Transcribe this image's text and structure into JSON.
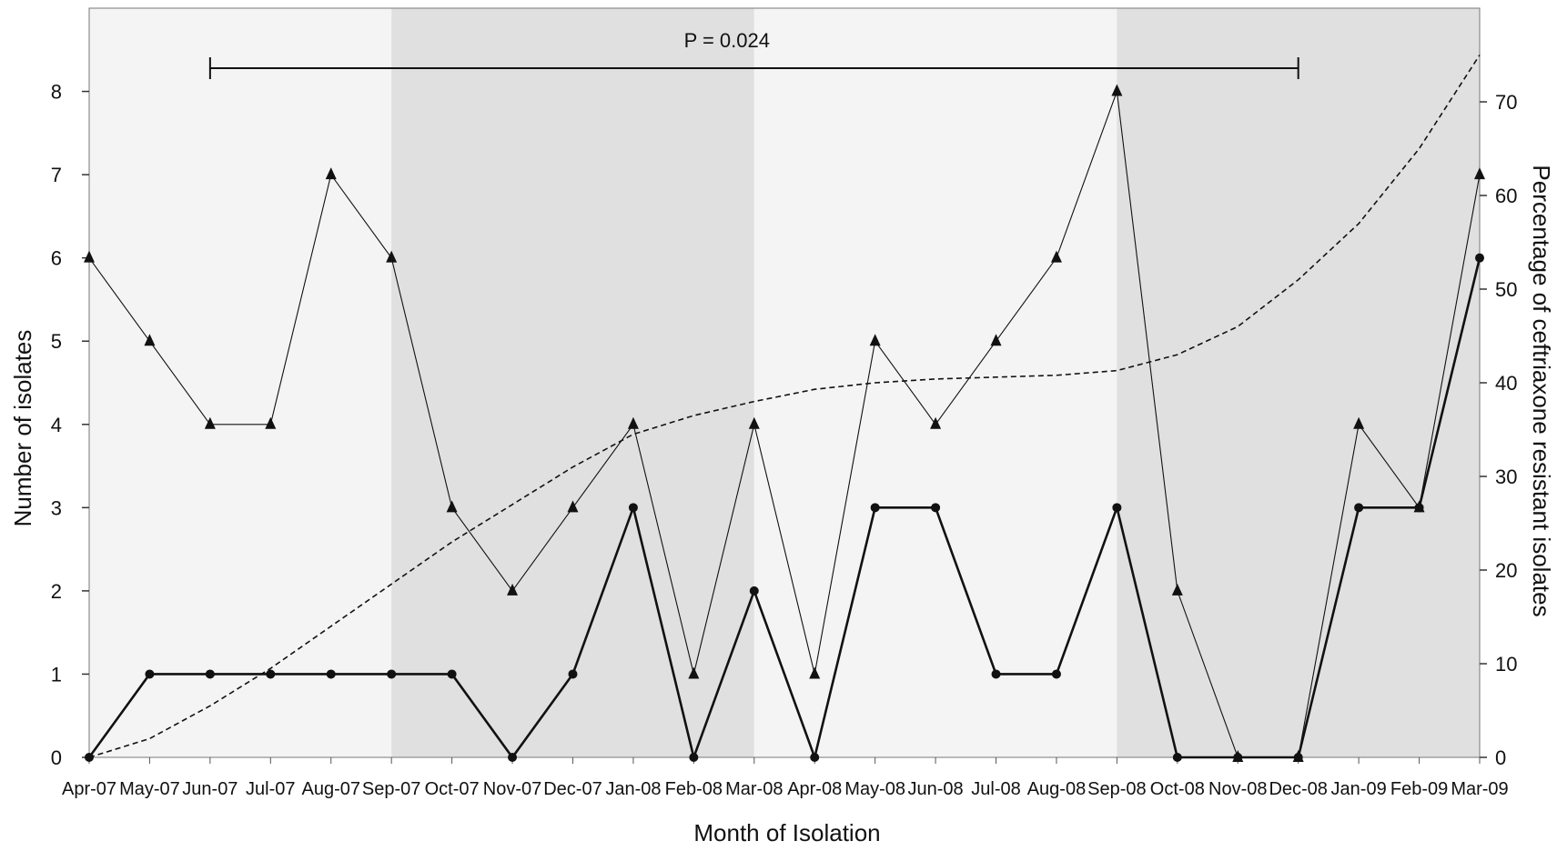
{
  "chart_data": {
    "type": "line",
    "xlabel": "Month of Isolation",
    "ylabel": "Number of isolates",
    "y2label": "Percentage of ceftriaxone resistant isolates",
    "annotation": "P = 0.024",
    "categories": [
      "Apr-07",
      "May-07",
      "Jun-07",
      "Jul-07",
      "Aug-07",
      "Sep-07",
      "Oct-07",
      "Nov-07",
      "Dec-07",
      "Jan-08",
      "Feb-08",
      "Mar-08",
      "Apr-08",
      "May-08",
      "Jun-08",
      "Jul-08",
      "Aug-08",
      "Sep-08",
      "Oct-08",
      "Nov-08",
      "Dec-08",
      "Jan-09",
      "Feb-09",
      "Mar-09"
    ],
    "ylim": [
      0,
      9
    ],
    "yticks": [
      0,
      1,
      2,
      3,
      4,
      5,
      6,
      7,
      8
    ],
    "y2lim": [
      0,
      80
    ],
    "y2ticks": [
      0,
      10,
      20,
      30,
      40,
      50,
      60,
      70
    ],
    "annotation_range": [
      "Jun-07",
      "Dec-08"
    ],
    "shaded_bands": [
      {
        "from": "Apr-07",
        "to": "Sep-07",
        "color": "#f4f4f4"
      },
      {
        "from": "Sep-07",
        "to": "Mar-08",
        "color": "#e0e0e0"
      },
      {
        "from": "Mar-08",
        "to": "Sep-08",
        "color": "#f4f4f4"
      },
      {
        "from": "Sep-08",
        "to": "Mar-09",
        "color": "#e0e0e0"
      }
    ],
    "series": [
      {
        "marker": "triangle",
        "axis": "left",
        "stroke": "thin",
        "values": [
          6,
          5,
          4,
          4,
          7,
          6,
          3,
          2,
          3,
          4,
          1,
          4,
          1,
          5,
          4,
          5,
          6,
          8,
          2,
          0,
          0,
          4,
          3,
          7
        ]
      },
      {
        "marker": "circle",
        "axis": "left",
        "stroke": "thick",
        "values": [
          0,
          1,
          1,
          1,
          1,
          1,
          1,
          0,
          1,
          3,
          0,
          2,
          0,
          3,
          3,
          1,
          1,
          3,
          0,
          0,
          0,
          3,
          3,
          6
        ]
      },
      {
        "marker": "none",
        "axis": "right",
        "style": "dashed",
        "values": [
          0,
          2,
          5.5,
          9.5,
          14,
          18.5,
          23,
          27,
          31,
          34.5,
          36.5,
          38,
          39.3,
          40,
          40.4,
          40.6,
          40.8,
          41.3,
          43,
          46,
          51,
          57,
          65,
          75
        ]
      }
    ]
  }
}
